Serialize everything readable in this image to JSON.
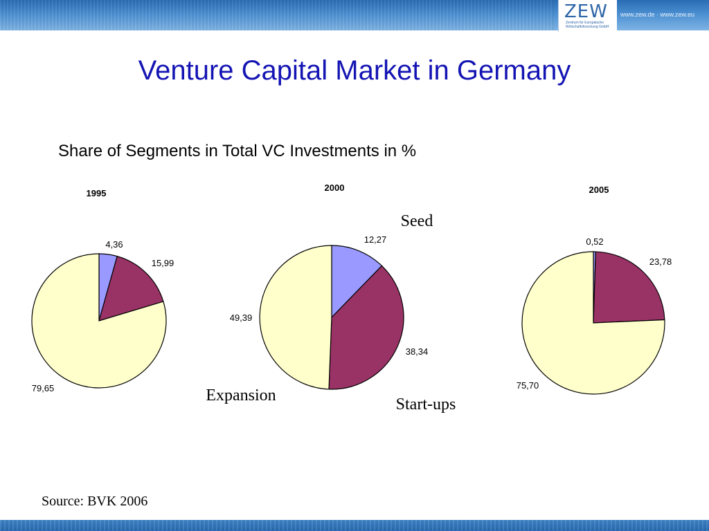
{
  "brand": {
    "logo_text": "ZEW",
    "logo_subtitle": "Zentrum für Europäische Wirtschaftsforschung GmbH",
    "url_text": "www.zew.de · www.zew.eu"
  },
  "slide": {
    "title": "Venture Capital Market in Germany",
    "source": "Source: BVK 2006"
  },
  "colors": {
    "seed": "#9999ff",
    "startups": "#993366",
    "expansion": "#ffffcc",
    "title": "#1414b4",
    "banner": "#2a6cb3"
  },
  "chart_data": {
    "type": "pie",
    "title": "Share of Segments in Total VC Investments in %",
    "segment_labels": [
      "Seed",
      "Start-ups",
      "Expansion"
    ],
    "charts": [
      {
        "title": "1995",
        "values": [
          4.36,
          15.99,
          79.65
        ],
        "value_labels": [
          "4,36",
          "15,99",
          "79,65"
        ]
      },
      {
        "title": "2000",
        "values": [
          12.27,
          38.34,
          49.39
        ],
        "value_labels": [
          "12,27",
          "38,34",
          "49,39"
        ]
      },
      {
        "title": "2005",
        "values": [
          0.52,
          23.78,
          75.7
        ],
        "value_labels": [
          "0,52",
          "23,78",
          "75,70"
        ]
      }
    ]
  }
}
